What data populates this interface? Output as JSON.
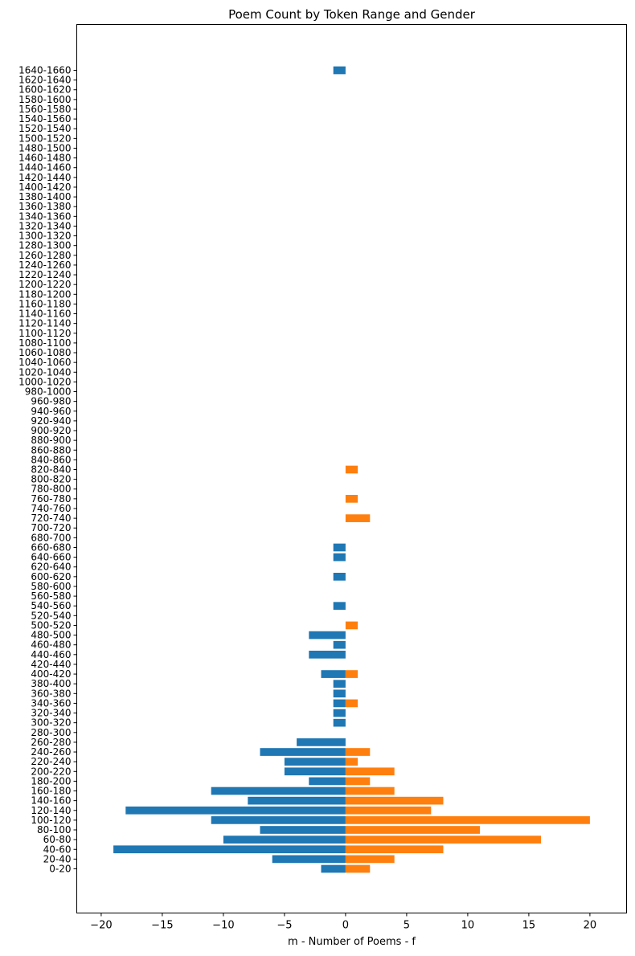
{
  "chart_data": {
    "type": "bar",
    "orientation": "horizontal",
    "title": "Poem Count by Token Range and Gender",
    "xlabel": "m - Number of Poems - f",
    "ylabel": "",
    "xlim": [
      -22,
      23
    ],
    "xticks": [
      -20,
      -15,
      -10,
      -5,
      0,
      5,
      10,
      15,
      20
    ],
    "xtick_labels": [
      "−20",
      "−15",
      "−10",
      "−5",
      "0",
      "5",
      "10",
      "15",
      "20"
    ],
    "grid": false,
    "legend": "none",
    "categories": [
      "0-20",
      "20-40",
      "40-60",
      "60-80",
      "80-100",
      "100-120",
      "120-140",
      "140-160",
      "160-180",
      "180-200",
      "200-220",
      "220-240",
      "240-260",
      "260-280",
      "280-300",
      "300-320",
      "320-340",
      "340-360",
      "360-380",
      "380-400",
      "400-420",
      "420-440",
      "440-460",
      "460-480",
      "480-500",
      "500-520",
      "520-540",
      "540-560",
      "560-580",
      "580-600",
      "600-620",
      "620-640",
      "640-660",
      "660-680",
      "680-700",
      "700-720",
      "720-740",
      "740-760",
      "760-780",
      "780-800",
      "800-820",
      "820-840",
      "840-860",
      "860-880",
      "880-900",
      "900-920",
      "920-940",
      "940-960",
      "960-980",
      "980-1000",
      "1000-1020",
      "1020-1040",
      "1040-1060",
      "1060-1080",
      "1080-1100",
      "1100-1120",
      "1120-1140",
      "1140-1160",
      "1160-1180",
      "1180-1200",
      "1200-1220",
      "1220-1240",
      "1240-1260",
      "1260-1280",
      "1280-1300",
      "1300-1320",
      "1320-1340",
      "1340-1360",
      "1360-1380",
      "1380-1400",
      "1400-1420",
      "1420-1440",
      "1440-1460",
      "1460-1480",
      "1480-1500",
      "1500-1520",
      "1520-1540",
      "1540-1560",
      "1560-1580",
      "1580-1600",
      "1600-1620",
      "1620-1640",
      "1640-1660"
    ],
    "series": [
      {
        "color": "#1f77b4",
        "values": [
          -2,
          -6,
          -19,
          -10,
          -7,
          -11,
          -18,
          -8,
          -11,
          -3,
          -5,
          -5,
          -7,
          -4,
          0,
          -1,
          -1,
          -1,
          -1,
          -1,
          -2,
          0,
          -3,
          -1,
          -3,
          0,
          0,
          -1,
          0,
          0,
          -1,
          0,
          -1,
          -1,
          0,
          0,
          0,
          0,
          0,
          0,
          0,
          0,
          0,
          0,
          0,
          0,
          0,
          0,
          0,
          0,
          0,
          0,
          0,
          0,
          0,
          0,
          0,
          0,
          0,
          0,
          0,
          0,
          0,
          0,
          0,
          0,
          0,
          0,
          0,
          0,
          0,
          0,
          0,
          0,
          0,
          0,
          0,
          0,
          0,
          0,
          0,
          0,
          -1
        ]
      },
      {
        "color": "#ff7f0e",
        "values": [
          2,
          4,
          8,
          16,
          11,
          20,
          7,
          8,
          4,
          2,
          4,
          1,
          2,
          0,
          0,
          0,
          0,
          1,
          0,
          0,
          1,
          0,
          0,
          0,
          0,
          1,
          0,
          0,
          0,
          0,
          0,
          0,
          0,
          0,
          0,
          0,
          2,
          0,
          1,
          0,
          0,
          1,
          0,
          0,
          0,
          0,
          0,
          0,
          0,
          0,
          0,
          0,
          0,
          0,
          0,
          0,
          0,
          0,
          0,
          0,
          0,
          0,
          0,
          0,
          0,
          0,
          0,
          0,
          0,
          0,
          0,
          0,
          0,
          0,
          0,
          0,
          0,
          0,
          0,
          0,
          0,
          0,
          0
        ]
      }
    ]
  }
}
